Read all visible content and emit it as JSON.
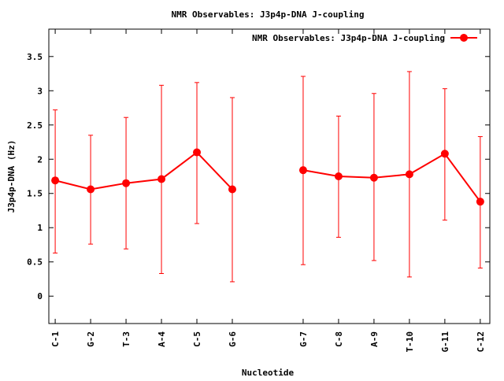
{
  "chart_data": {
    "type": "line",
    "title": "NMR Observables: J3p4p-DNA J-coupling",
    "xlabel": "Nucleotide",
    "ylabel": "J3p4p-DNA (Hz)",
    "ylim": [
      -0.4,
      3.9
    ],
    "xlim": [
      0.82,
      13.27
    ],
    "yticks": [
      0,
      0.5,
      1,
      1.5,
      2,
      2.5,
      3,
      3.5
    ],
    "ytick_labels": [
      "0",
      "0.5",
      "1",
      "1.5",
      "2",
      "2.5",
      "3",
      "3.5"
    ],
    "legend": {
      "label": "NMR Observables: J3p4p-DNA J-coupling",
      "placement": "top-right"
    },
    "grid": false,
    "color": "#ff0000",
    "series": [
      {
        "name": "NMR Observables: J3p4p-DNA J-coupling",
        "segments": [
          [
            {
              "x": 1,
              "label": "C-1",
              "y": 1.69,
              "ylow": 0.63,
              "yhigh": 2.72
            },
            {
              "x": 2,
              "label": "G-2",
              "y": 1.56,
              "ylow": 0.76,
              "yhigh": 2.35
            },
            {
              "x": 3,
              "label": "T-3",
              "y": 1.65,
              "ylow": 0.69,
              "yhigh": 2.61
            },
            {
              "x": 4,
              "label": "A-4",
              "y": 1.71,
              "ylow": 0.33,
              "yhigh": 3.08
            },
            {
              "x": 5,
              "label": "C-5",
              "y": 2.1,
              "ylow": 1.06,
              "yhigh": 3.12
            },
            {
              "x": 6,
              "label": "G-6",
              "y": 1.56,
              "ylow": 0.21,
              "yhigh": 2.9
            }
          ],
          [
            {
              "x": 8,
              "label": "G-7",
              "y": 1.84,
              "ylow": 0.46,
              "yhigh": 3.21
            },
            {
              "x": 9,
              "label": "C-8",
              "y": 1.75,
              "ylow": 0.86,
              "yhigh": 2.63
            },
            {
              "x": 10,
              "label": "A-9",
              "y": 1.73,
              "ylow": 0.52,
              "yhigh": 2.96
            },
            {
              "x": 11,
              "label": "T-10",
              "y": 1.78,
              "ylow": 0.28,
              "yhigh": 3.28
            },
            {
              "x": 12,
              "label": "G-11",
              "y": 2.08,
              "ylow": 1.11,
              "yhigh": 3.03
            },
            {
              "x": 13,
              "label": "C-12",
              "y": 1.38,
              "ylow": 0.41,
              "yhigh": 2.33
            }
          ]
        ]
      }
    ]
  }
}
